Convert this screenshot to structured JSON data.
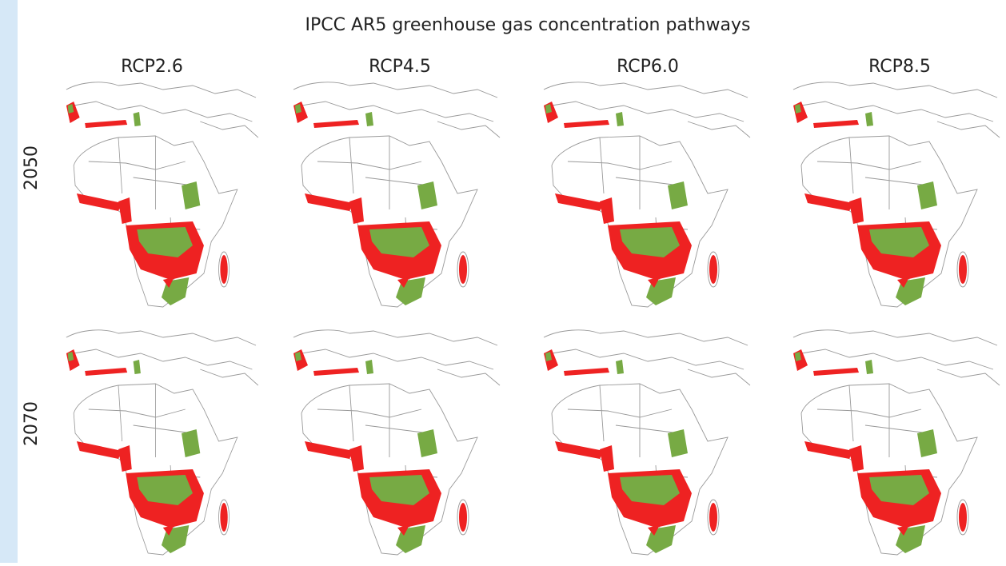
{
  "title": "IPCC AR5 greenhouse gas concentration pathways",
  "columns": [
    "RCP2.6",
    "RCP4.5",
    "RCP6.0",
    "RCP8.5"
  ],
  "rows": [
    "2050",
    "2070"
  ]
}
